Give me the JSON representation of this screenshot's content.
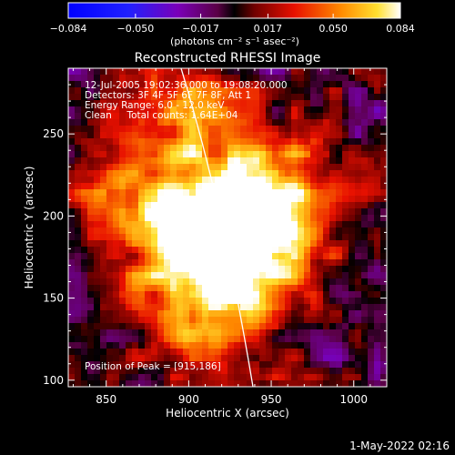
{
  "chart_data": {
    "type": "heatmap",
    "title": "Reconstructed RHESSI Image",
    "xlabel": "Heliocentric X (arcsec)",
    "ylabel": "Heliocentric Y (arcsec)",
    "xlim": [
      827,
      1020
    ],
    "ylim": [
      96,
      290
    ],
    "x_ticks": [
      850,
      900,
      950,
      1000
    ],
    "y_ticks": [
      100,
      150,
      200,
      250
    ],
    "colorbar": {
      "min": -0.084,
      "max": 0.084,
      "tick_values": [
        -0.084,
        -0.05,
        -0.017,
        0.017,
        0.05,
        0.084
      ],
      "tick_labels": [
        "−0.084",
        "−0.050",
        "−0.017",
        "0.017",
        "0.050",
        "0.084"
      ],
      "units": "(photons cm⁻² s⁻¹ asec⁻²)"
    },
    "annotations": {
      "time": "12-Jul-2005 19:02:36.000 to 19:08:20.000",
      "detectors": "Detectors: 3F 4F 5F 6F 7F 8F, Att 1",
      "energy": "Energy Range: 6.0 - 12.0 keV",
      "method": "Clean     Total counts: 1.64E+04",
      "peak": "Position of Peak = [915,186]"
    },
    "peak": [
      915,
      186
    ],
    "footer_date": "1-May-2022 02:16"
  }
}
